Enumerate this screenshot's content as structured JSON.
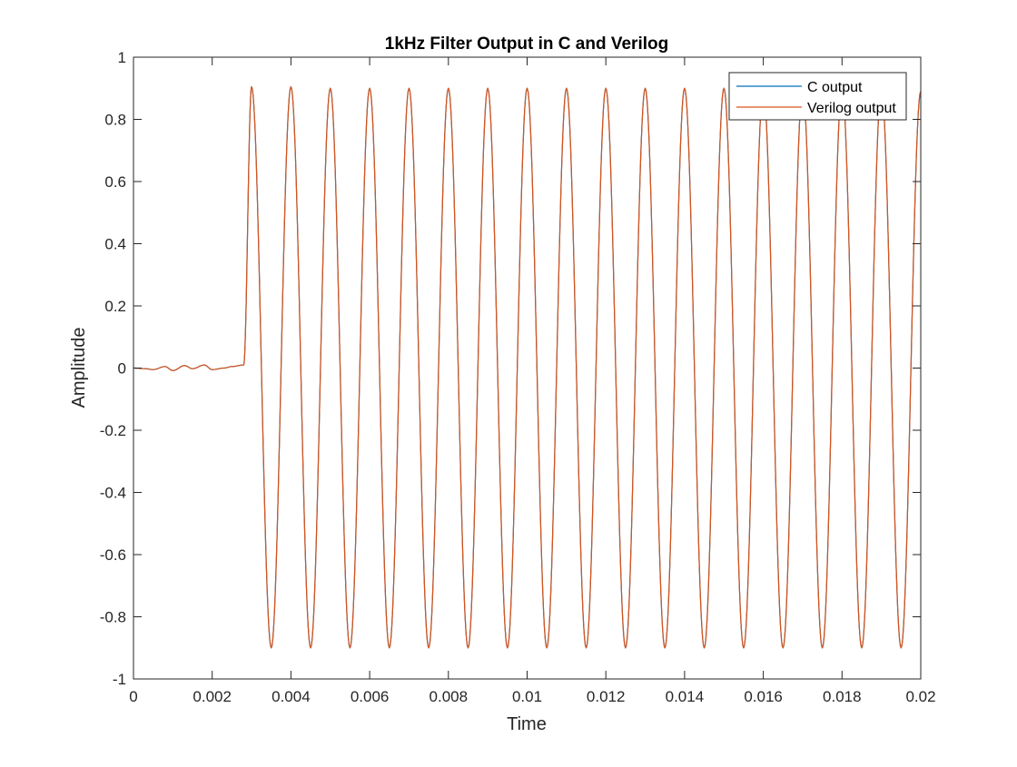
{
  "chart_data": {
    "type": "line",
    "title": "1kHz Filter Output in C and Verilog",
    "xlabel": "Time",
    "ylabel": "Amplitude",
    "xlim": [
      0,
      0.02
    ],
    "ylim": [
      -1,
      1
    ],
    "xticks": [
      0,
      0.002,
      0.004,
      0.006,
      0.008,
      0.01,
      0.012,
      0.014,
      0.016,
      0.018,
      0.02
    ],
    "xtick_labels": [
      "0",
      "0.002",
      "0.004",
      "0.006",
      "0.008",
      "0.01",
      "0.012",
      "0.014",
      "0.016",
      "0.018",
      "0.02"
    ],
    "yticks": [
      -1,
      -0.8,
      -0.6,
      -0.4,
      -0.2,
      0,
      0.2,
      0.4,
      0.6,
      0.8,
      1
    ],
    "ytick_labels": [
      "-1",
      "-0.8",
      "-0.6",
      "-0.4",
      "-0.2",
      "0",
      "0.2",
      "0.4",
      "0.6",
      "0.8",
      "1"
    ],
    "grid": false,
    "legend_position": "top-right",
    "series": [
      {
        "name": "C output",
        "color": "#0072BD",
        "x": [
          0,
          0.0003,
          0.0005,
          0.0008,
          0.001,
          0.0013,
          0.0015,
          0.0018,
          0.002,
          0.0023,
          0.0025,
          0.0028,
          0.003,
          0.0035,
          0.004,
          0.0045,
          0.005,
          0.0055,
          0.006,
          0.0065,
          0.007,
          0.0075,
          0.008,
          0.0085,
          0.009,
          0.0095,
          0.01,
          0.0105,
          0.011,
          0.0115,
          0.012,
          0.0125,
          0.013,
          0.0135,
          0.014,
          0.0145,
          0.015,
          0.0155,
          0.016,
          0.0165,
          0.017,
          0.0175,
          0.018,
          0.0185,
          0.019,
          0.0195,
          0.02
        ],
        "y": [
          0,
          -0.002,
          -0.005,
          0.005,
          -0.008,
          0.008,
          -0.002,
          0.01,
          -0.005,
          0.0,
          0.005,
          0.01,
          0.905,
          -0.9,
          0.905,
          -0.9,
          0.9,
          -0.9,
          0.9,
          -0.9,
          0.9,
          -0.9,
          0.9,
          -0.9,
          0.9,
          -0.9,
          0.9,
          -0.9,
          0.9,
          -0.9,
          0.9,
          -0.9,
          0.9,
          -0.9,
          0.9,
          -0.9,
          0.9,
          -0.9,
          0.9,
          -0.9,
          0.9,
          -0.9,
          0.9,
          -0.9,
          0.9,
          -0.9,
          0.89
        ]
      },
      {
        "name": "Verilog output",
        "color": "#D95319",
        "x": [
          0,
          0.0003,
          0.0005,
          0.0008,
          0.001,
          0.0013,
          0.0015,
          0.0018,
          0.002,
          0.0023,
          0.0025,
          0.0028,
          0.003,
          0.0035,
          0.004,
          0.0045,
          0.005,
          0.0055,
          0.006,
          0.0065,
          0.007,
          0.0075,
          0.008,
          0.0085,
          0.009,
          0.0095,
          0.01,
          0.0105,
          0.011,
          0.0115,
          0.012,
          0.0125,
          0.013,
          0.0135,
          0.014,
          0.0145,
          0.015,
          0.0155,
          0.016,
          0.0165,
          0.017,
          0.0175,
          0.018,
          0.0185,
          0.019,
          0.0195,
          0.02
        ],
        "y": [
          0,
          -0.002,
          -0.005,
          0.005,
          -0.008,
          0.008,
          -0.002,
          0.01,
          -0.005,
          0.0,
          0.005,
          0.01,
          0.905,
          -0.9,
          0.905,
          -0.9,
          0.9,
          -0.9,
          0.9,
          -0.9,
          0.9,
          -0.9,
          0.9,
          -0.9,
          0.9,
          -0.9,
          0.9,
          -0.9,
          0.9,
          -0.9,
          0.9,
          -0.9,
          0.9,
          -0.9,
          0.9,
          -0.9,
          0.9,
          -0.9,
          0.9,
          -0.9,
          0.9,
          -0.9,
          0.9,
          -0.9,
          0.9,
          -0.9,
          0.89
        ]
      }
    ]
  }
}
